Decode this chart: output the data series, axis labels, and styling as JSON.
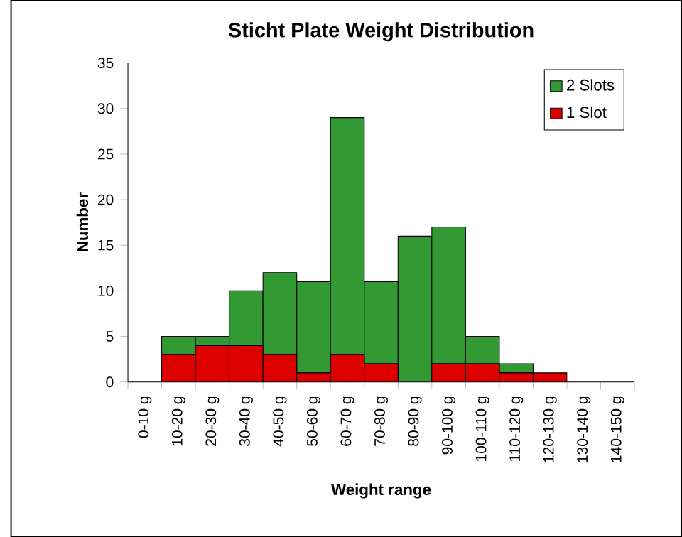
{
  "chart_data": {
    "type": "bar",
    "stacked": true,
    "title": "Sticht Plate Weight Distribution",
    "xlabel": "Weight range",
    "ylabel": "Number",
    "categories": [
      "0-10 g",
      "10-20 g",
      "20-30 g",
      "30-40 g",
      "40-50 g",
      "50-60 g",
      "60-70 g",
      "70-80 g",
      "80-90 g",
      "90-100 g",
      "100-110 g",
      "110-120 g",
      "120-130 g",
      "130-140 g",
      "140-150 g"
    ],
    "series": [
      {
        "name": "1 Slot",
        "color": "#dd0000",
        "values": [
          0,
          3,
          4,
          4,
          3,
          1,
          3,
          2,
          0,
          2,
          2,
          1,
          1,
          0,
          0
        ]
      },
      {
        "name": "2 Slots",
        "color": "#339933",
        "values": [
          0,
          2,
          1,
          6,
          9,
          10,
          26,
          9,
          16,
          15,
          3,
          1,
          0,
          0,
          0
        ]
      }
    ],
    "ylim": [
      0,
      35
    ],
    "yticks": [
      0,
      5,
      10,
      15,
      20,
      25,
      30,
      35
    ],
    "grid": false,
    "legend": "top right"
  }
}
